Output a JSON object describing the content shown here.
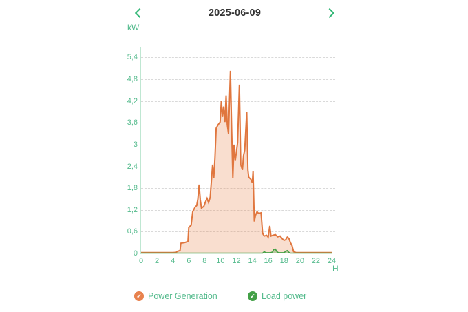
{
  "header": {
    "date": "2025-06-09",
    "prev_icon": "chevron-left",
    "next_icon": "chevron-right"
  },
  "colors": {
    "accent_text_green": "#55bb8d",
    "chevron_green": "#35b878",
    "date_text": "#333333",
    "gridline": "#d9d9d9",
    "y_axis_line": "#bfe7d2",
    "generation_line": "#e0763e",
    "generation_fill": "rgba(235,138,83,0.28)",
    "load_line": "#44a044",
    "load_fill": "rgba(68,160,68,0.35)",
    "legend_generation_badge": "#e8824e",
    "legend_load_badge": "#43a047"
  },
  "icons": {
    "legend_check": "✓"
  },
  "chart_data": {
    "type": "area",
    "title": "2025-06-09",
    "ylabel": "kW",
    "xlabel": "H",
    "xlim": [
      0,
      24
    ],
    "ylim": [
      0,
      5.4
    ],
    "grid": "horizontal dashed",
    "legend_position": "bottom",
    "y_ticks": {
      "values": [
        0,
        0.6,
        1.2,
        1.8,
        2.4,
        3,
        3.6,
        4.2,
        4.8,
        5.4
      ],
      "labels": [
        "0",
        "0,6",
        "1,2",
        "1,8",
        "2,4",
        "3",
        "3,6",
        "4,2",
        "4,8",
        "5,4"
      ]
    },
    "x_ticks": [
      "0",
      "2",
      "4",
      "6",
      "8",
      "10",
      "12",
      "14",
      "16",
      "18",
      "20",
      "22",
      "24"
    ],
    "series": [
      {
        "name": "Power Generation",
        "color": "#e0763e",
        "fill": "rgba(235,138,83,0.28)",
        "points": [
          [
            0,
            0.025
          ],
          [
            0.5,
            0.025
          ],
          [
            1,
            0.025
          ],
          [
            1.5,
            0.025
          ],
          [
            2,
            0.025
          ],
          [
            2.5,
            0.025
          ],
          [
            3,
            0.025
          ],
          [
            3.5,
            0.025
          ],
          [
            4,
            0.025
          ],
          [
            4.4,
            0.03
          ],
          [
            4.6,
            0.06
          ],
          [
            4.9,
            0.08
          ],
          [
            5,
            0.28
          ],
          [
            5.5,
            0.3
          ],
          [
            5.9,
            0.33
          ],
          [
            6,
            0.72
          ],
          [
            6.3,
            0.78
          ],
          [
            6.5,
            1.15
          ],
          [
            6.8,
            1.28
          ],
          [
            7,
            1.32
          ],
          [
            7.15,
            1.5
          ],
          [
            7.3,
            1.9
          ],
          [
            7.45,
            1.48
          ],
          [
            7.6,
            1.25
          ],
          [
            7.9,
            1.3
          ],
          [
            8.1,
            1.42
          ],
          [
            8.3,
            1.52
          ],
          [
            8.5,
            1.4
          ],
          [
            8.7,
            1.55
          ],
          [
            8.85,
            1.98
          ],
          [
            9,
            2.45
          ],
          [
            9.15,
            2.08
          ],
          [
            9.3,
            2.62
          ],
          [
            9.45,
            3.45
          ],
          [
            9.7,
            3.55
          ],
          [
            9.95,
            3.62
          ],
          [
            10.1,
            4.2
          ],
          [
            10.25,
            3.76
          ],
          [
            10.4,
            4.05
          ],
          [
            10.55,
            3.62
          ],
          [
            10.7,
            4.35
          ],
          [
            10.85,
            3.55
          ],
          [
            11,
            3.3
          ],
          [
            11.25,
            5.03
          ],
          [
            11.4,
            3.4
          ],
          [
            11.55,
            2.08
          ],
          [
            11.7,
            3.0
          ],
          [
            11.85,
            2.55
          ],
          [
            12,
            2.8
          ],
          [
            12.15,
            3.05
          ],
          [
            12.37,
            4.65
          ],
          [
            12.55,
            2.45
          ],
          [
            12.75,
            2.3
          ],
          [
            12.9,
            2.7
          ],
          [
            13.05,
            2.85
          ],
          [
            13.3,
            3.9
          ],
          [
            13.45,
            2.3
          ],
          [
            13.55,
            2.1
          ],
          [
            13.8,
            2.05
          ],
          [
            14,
            1.95
          ],
          [
            14.1,
            2.27
          ],
          [
            14.25,
            0.88
          ],
          [
            14.4,
            1.05
          ],
          [
            14.6,
            1.15
          ],
          [
            14.8,
            1.1
          ],
          [
            15.1,
            1.12
          ],
          [
            15.3,
            0.55
          ],
          [
            15.5,
            0.48
          ],
          [
            15.8,
            0.5
          ],
          [
            16,
            0.45
          ],
          [
            16.2,
            0.76
          ],
          [
            16.35,
            0.48
          ],
          [
            16.6,
            0.5
          ],
          [
            16.9,
            0.52
          ],
          [
            17.2,
            0.46
          ],
          [
            17.5,
            0.48
          ],
          [
            17.8,
            0.4
          ],
          [
            18,
            0.36
          ],
          [
            18.2,
            0.38
          ],
          [
            18.4,
            0.45
          ],
          [
            18.6,
            0.42
          ],
          [
            18.8,
            0.3
          ],
          [
            19,
            0.22
          ],
          [
            19.2,
            0.05
          ],
          [
            19.5,
            0.025
          ],
          [
            20,
            0.025
          ],
          [
            21,
            0.025
          ],
          [
            22,
            0.025
          ],
          [
            23,
            0.025
          ],
          [
            24,
            0.025
          ]
        ]
      },
      {
        "name": "Load power",
        "color": "#44a044",
        "fill": "rgba(68,160,68,0.35)",
        "points": [
          [
            0,
            0.01
          ],
          [
            2,
            0.01
          ],
          [
            4,
            0.01
          ],
          [
            6,
            0.01
          ],
          [
            8,
            0.01
          ],
          [
            10,
            0.01
          ],
          [
            12,
            0.01
          ],
          [
            14,
            0.01
          ],
          [
            15.3,
            0.01
          ],
          [
            15.5,
            0.05
          ],
          [
            15.7,
            0.02
          ],
          [
            16.3,
            0.02
          ],
          [
            16.55,
            0.04
          ],
          [
            16.7,
            0.11
          ],
          [
            16.9,
            0.12
          ],
          [
            17.1,
            0.05
          ],
          [
            17.3,
            0.02
          ],
          [
            18,
            0.02
          ],
          [
            18.2,
            0.06
          ],
          [
            18.4,
            0.08
          ],
          [
            18.6,
            0.03
          ],
          [
            18.8,
            0.01
          ],
          [
            20,
            0.01
          ],
          [
            22,
            0.01
          ],
          [
            24,
            0.01
          ]
        ]
      }
    ]
  },
  "legend": {
    "items": [
      {
        "label": "Power Generation",
        "badge_color": "#e8824e"
      },
      {
        "label": "Load power",
        "badge_color": "#43a047"
      }
    ]
  }
}
